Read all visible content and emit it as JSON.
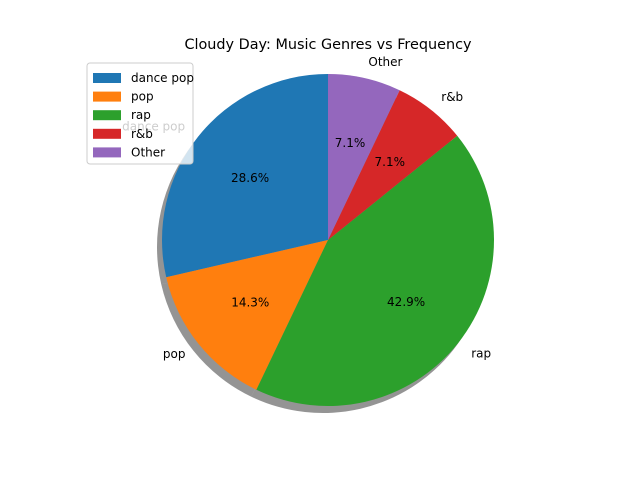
{
  "chart_data": {
    "type": "pie",
    "title": "Cloudy Day: Music Genres vs Frequency",
    "slices": [
      {
        "label": "dance pop",
        "value": 28.6,
        "pct_label": "28.6%",
        "color": "#1f77b4"
      },
      {
        "label": "pop",
        "value": 14.3,
        "pct_label": "14.3%",
        "color": "#ff7f0e"
      },
      {
        "label": "rap",
        "value": 42.9,
        "pct_label": "42.9%",
        "color": "#2ca02c"
      },
      {
        "label": "r&b",
        "value": 7.1,
        "pct_label": "7.1%",
        "color": "#d62728"
      },
      {
        "label": "Other",
        "value": 7.1,
        "pct_label": "7.1%",
        "color": "#9467bd"
      }
    ],
    "shadow": true,
    "legend_position": "top-left"
  }
}
